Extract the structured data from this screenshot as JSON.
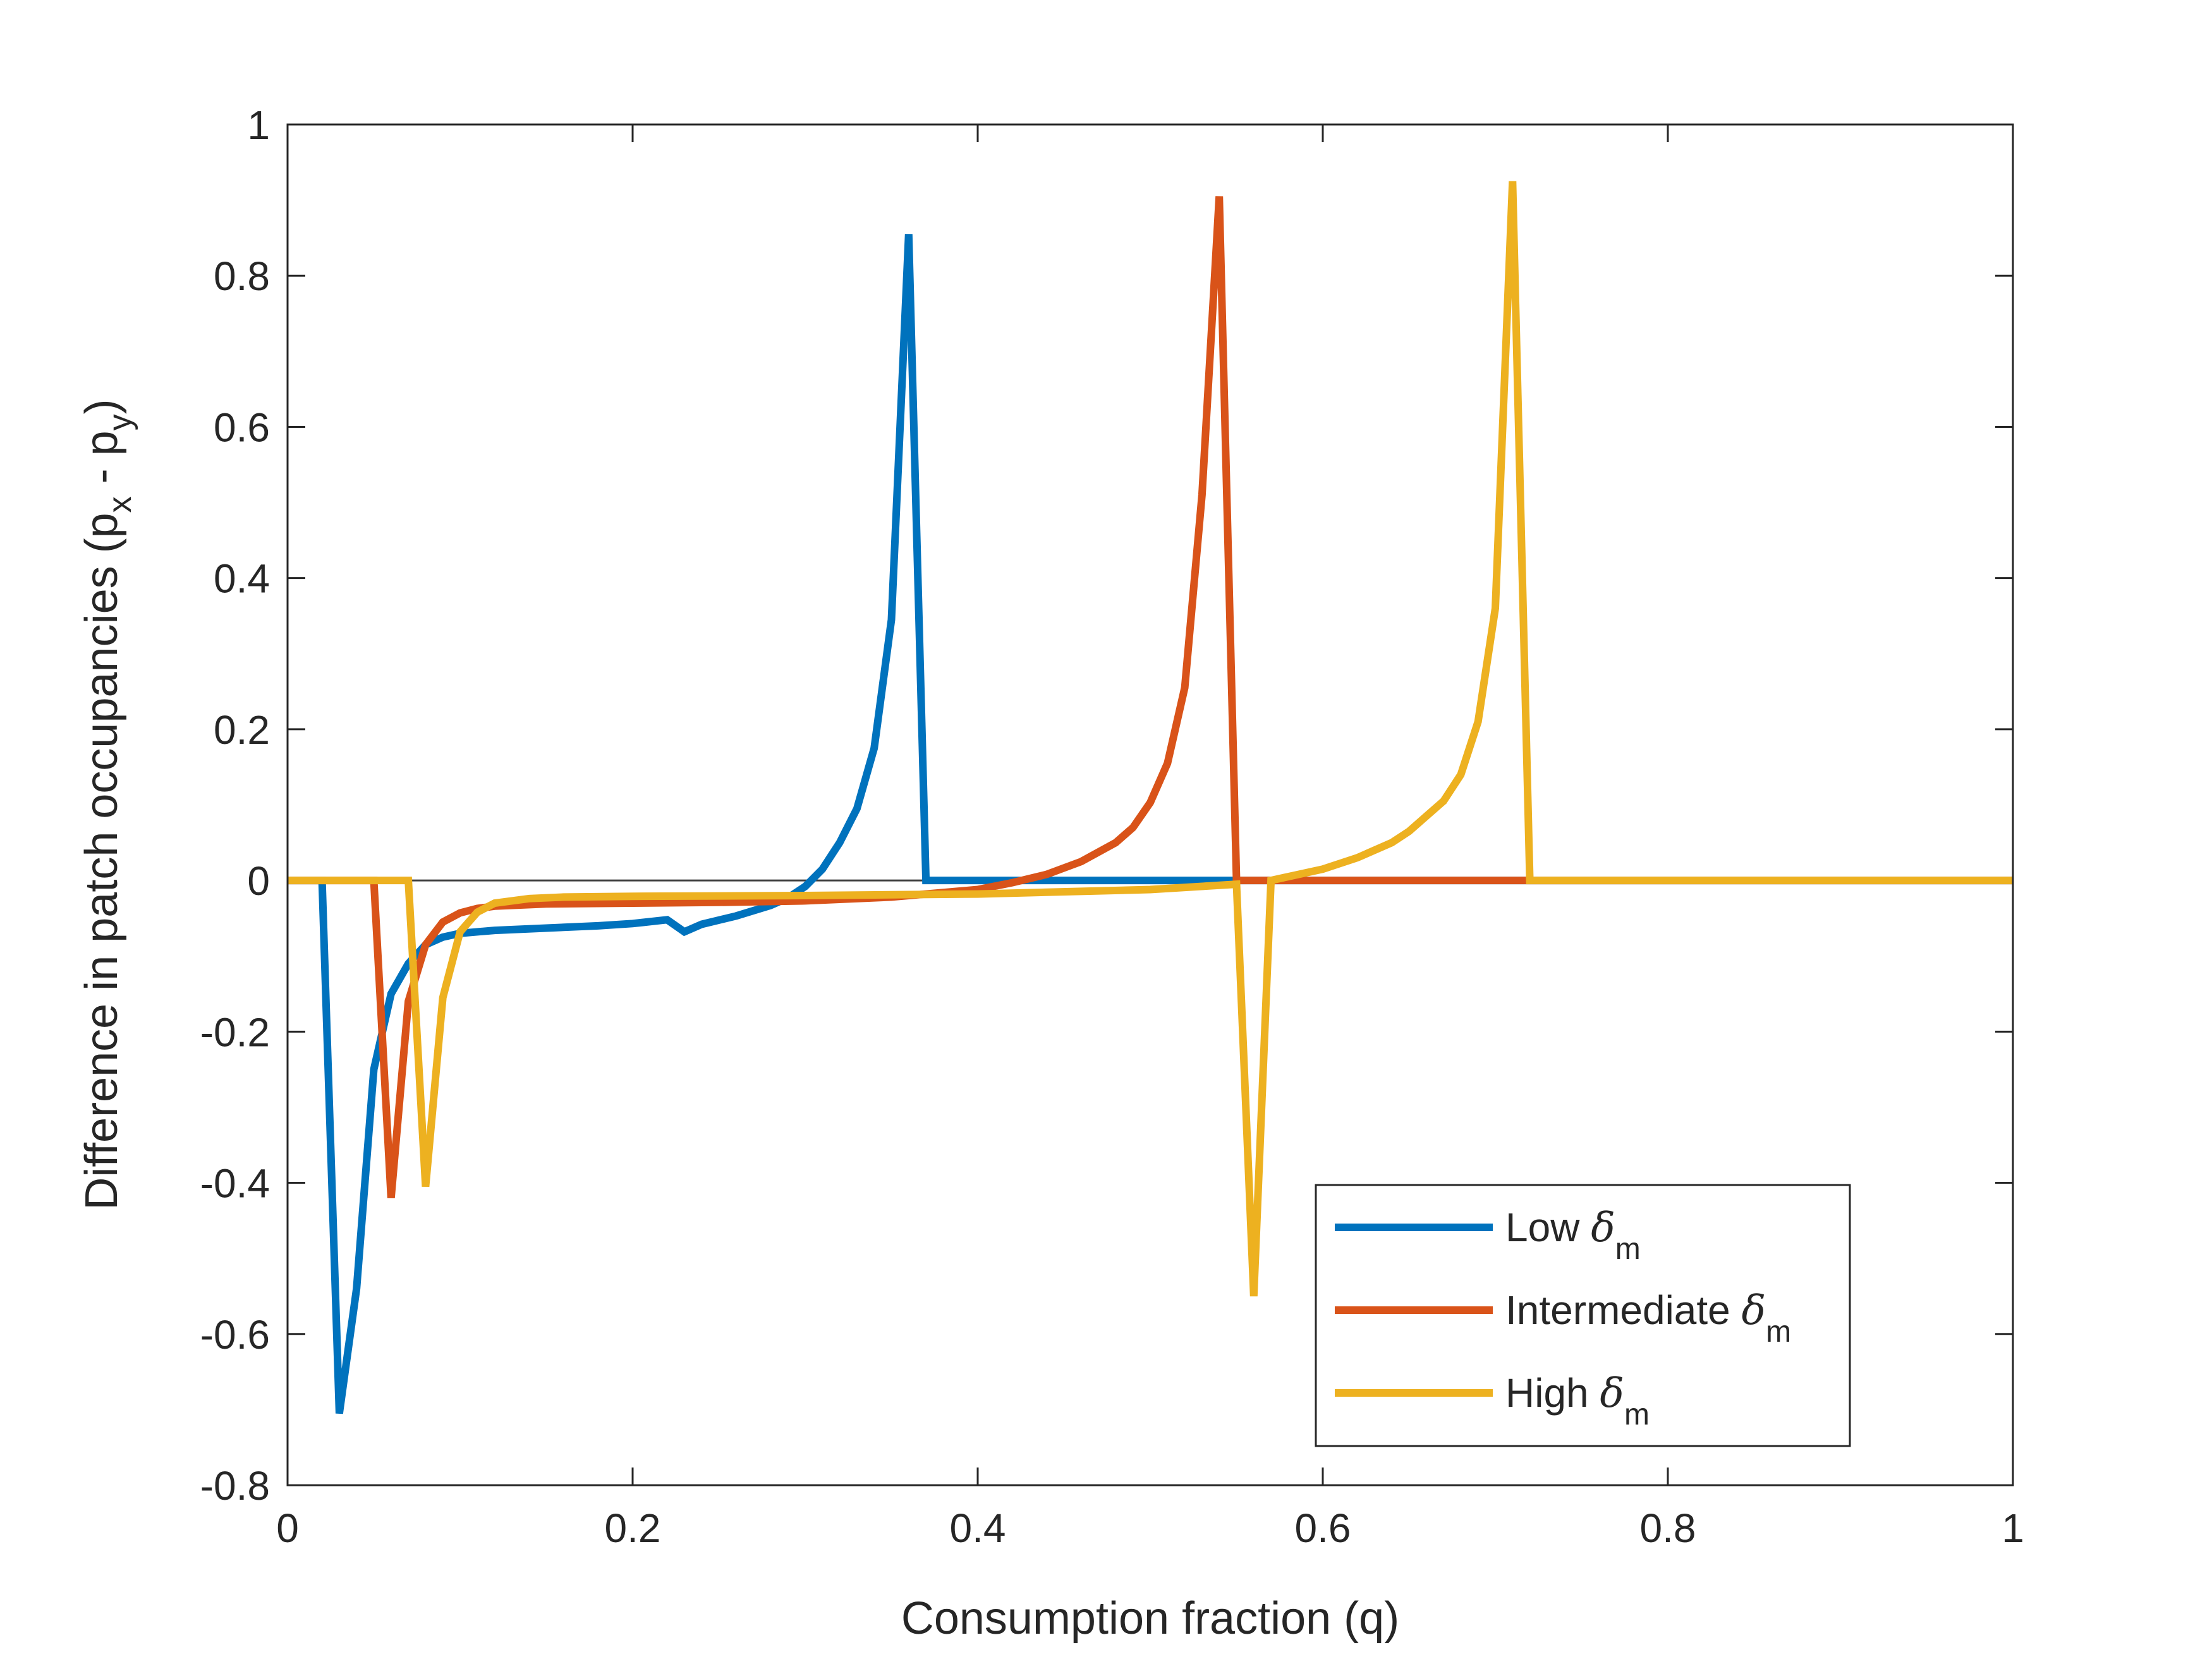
{
  "chart_data": {
    "type": "line",
    "xlabel": "Consumption fraction (q)",
    "ylabel": "Difference in patch occupancies (p",
    "ylabel_sub_x": "x",
    "ylabel_mid": " - p",
    "ylabel_sub_y": "y",
    "ylabel_end": ")",
    "xlim": [
      0,
      1
    ],
    "ylim": [
      -0.8,
      1
    ],
    "xticks": [
      0,
      0.2,
      0.4,
      0.6,
      0.8,
      1
    ],
    "xtick_labels": [
      "0",
      "0.2",
      "0.4",
      "0.6",
      "0.8",
      "1"
    ],
    "yticks": [
      -0.8,
      -0.6,
      -0.4,
      -0.2,
      0,
      0.2,
      0.4,
      0.6,
      0.8,
      1
    ],
    "ytick_labels": [
      "-0.8",
      "-0.6",
      "-0.4",
      "-0.2",
      "0",
      "0.2",
      "0.4",
      "0.6",
      "0.8",
      "1"
    ],
    "grid": false,
    "zero_line": true,
    "legend_position": "bottom-right",
    "legend_symbol": "δ",
    "legend_subscript": "m",
    "series": [
      {
        "name": "Low",
        "color": "#0072BD",
        "x": [
          0,
          0.02,
          0.03,
          0.04,
          0.05,
          0.06,
          0.07,
          0.08,
          0.09,
          0.1,
          0.12,
          0.15,
          0.18,
          0.2,
          0.22,
          0.23,
          0.24,
          0.26,
          0.28,
          0.29,
          0.3,
          0.31,
          0.32,
          0.33,
          0.34,
          0.35,
          0.36,
          0.37,
          0.4,
          0.45,
          0.5,
          0.55,
          0.6,
          0.65,
          0.7,
          0.72,
          0.8,
          0.9,
          1.0
        ],
        "y": [
          0,
          0,
          -0.705,
          -0.54,
          -0.25,
          -0.15,
          -0.11,
          -0.085,
          -0.075,
          -0.07,
          -0.066,
          -0.063,
          -0.06,
          -0.057,
          -0.052,
          -0.068,
          -0.058,
          -0.047,
          -0.033,
          -0.023,
          -0.008,
          0.015,
          0.05,
          0.095,
          0.175,
          0.345,
          0.855,
          0,
          0,
          0,
          0,
          0,
          0,
          0,
          0,
          0,
          0,
          0,
          0
        ]
      },
      {
        "name": "Intermediate",
        "color": "#D95319",
        "x": [
          0,
          0.05,
          0.06,
          0.07,
          0.08,
          0.09,
          0.1,
          0.11,
          0.12,
          0.15,
          0.2,
          0.25,
          0.3,
          0.35,
          0.4,
          0.42,
          0.44,
          0.46,
          0.48,
          0.49,
          0.5,
          0.51,
          0.52,
          0.53,
          0.54,
          0.55,
          0.6,
          0.65,
          0.7,
          0.72,
          0.8,
          0.9,
          1.0
        ],
        "y": [
          0,
          0,
          -0.42,
          -0.16,
          -0.085,
          -0.055,
          -0.043,
          -0.037,
          -0.034,
          -0.031,
          -0.03,
          -0.029,
          -0.027,
          -0.022,
          -0.012,
          -0.003,
          0.008,
          0.025,
          0.05,
          0.07,
          0.103,
          0.155,
          0.255,
          0.51,
          0.905,
          0,
          0,
          0,
          0,
          0,
          0,
          0,
          0
        ]
      },
      {
        "name": "High",
        "color": "#EDB120",
        "x": [
          0,
          0.07,
          0.08,
          0.09,
          0.1,
          0.11,
          0.12,
          0.14,
          0.16,
          0.2,
          0.3,
          0.4,
          0.5,
          0.55,
          0.56,
          0.57,
          0.6,
          0.62,
          0.64,
          0.65,
          0.66,
          0.67,
          0.68,
          0.69,
          0.7,
          0.71,
          0.72,
          0.8,
          0.9,
          1.0
        ],
        "y": [
          0,
          0,
          -0.405,
          -0.155,
          -0.068,
          -0.042,
          -0.03,
          -0.024,
          -0.022,
          -0.021,
          -0.02,
          -0.018,
          -0.012,
          -0.005,
          -0.55,
          0,
          0.015,
          0.03,
          0.05,
          0.065,
          0.085,
          0.105,
          0.14,
          0.21,
          0.36,
          0.925,
          0,
          0,
          0,
          0
        ]
      }
    ]
  }
}
